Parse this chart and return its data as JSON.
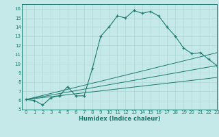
{
  "xlabel": "Humidex (Indice chaleur)",
  "bg_color": "#c5e8e8",
  "line_color": "#1a7a6e",
  "grid_color": "#aed4d4",
  "xlim": [
    -0.5,
    23
  ],
  "ylim": [
    5,
    16.5
  ],
  "xticks": [
    0,
    1,
    2,
    3,
    4,
    5,
    6,
    7,
    8,
    9,
    10,
    11,
    12,
    13,
    14,
    15,
    16,
    17,
    18,
    19,
    20,
    21,
    22,
    23
  ],
  "yticks": [
    5,
    6,
    7,
    8,
    9,
    10,
    11,
    12,
    13,
    14,
    15,
    16
  ],
  "line1_x": [
    0,
    1,
    2,
    3,
    4,
    5,
    6,
    7,
    8,
    9,
    10,
    11,
    12,
    13,
    14,
    15,
    16,
    17,
    18,
    19,
    20,
    21,
    22,
    23
  ],
  "line1_y": [
    6.1,
    6.0,
    5.5,
    6.3,
    6.5,
    7.5,
    6.5,
    6.5,
    9.5,
    13.0,
    14.0,
    15.2,
    15.0,
    15.8,
    15.5,
    15.7,
    15.2,
    14.0,
    13.0,
    11.7,
    11.1,
    11.2,
    10.5,
    9.8
  ],
  "line2_x": [
    0,
    23
  ],
  "line2_y": [
    6.1,
    11.2
  ],
  "line3_x": [
    0,
    23
  ],
  "line3_y": [
    6.1,
    9.8
  ],
  "line4_x": [
    0,
    23
  ],
  "line4_y": [
    6.1,
    8.5
  ]
}
